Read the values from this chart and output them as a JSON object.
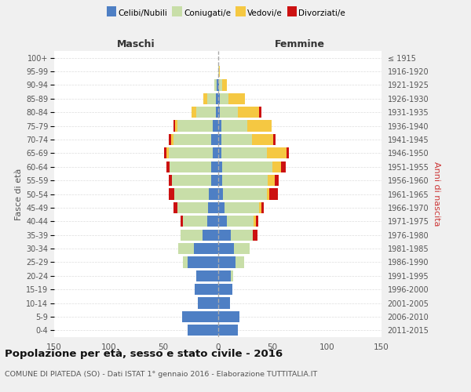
{
  "age_groups": [
    "0-4",
    "5-9",
    "10-14",
    "15-19",
    "20-24",
    "25-29",
    "30-34",
    "35-39",
    "40-44",
    "45-49",
    "50-54",
    "55-59",
    "60-64",
    "65-69",
    "70-74",
    "75-79",
    "80-84",
    "85-89",
    "90-94",
    "95-99",
    "100+"
  ],
  "birth_years": [
    "2011-2015",
    "2006-2010",
    "2001-2005",
    "1996-2000",
    "1991-1995",
    "1986-1990",
    "1981-1985",
    "1976-1980",
    "1971-1975",
    "1966-1970",
    "1961-1965",
    "1956-1960",
    "1951-1955",
    "1946-1950",
    "1941-1945",
    "1936-1940",
    "1931-1935",
    "1926-1930",
    "1921-1925",
    "1916-1920",
    "≤ 1915"
  ],
  "male": {
    "celibi": [
      28,
      33,
      18,
      21,
      20,
      28,
      22,
      14,
      10,
      9,
      8,
      6,
      6,
      5,
      6,
      5,
      2,
      2,
      1,
      0,
      0
    ],
    "coniugati": [
      0,
      0,
      0,
      0,
      0,
      4,
      14,
      20,
      22,
      28,
      32,
      36,
      38,
      40,
      35,
      32,
      18,
      8,
      2,
      0,
      0
    ],
    "vedovi": [
      0,
      0,
      0,
      0,
      0,
      0,
      0,
      0,
      0,
      0,
      0,
      0,
      0,
      2,
      2,
      2,
      4,
      3,
      0,
      0,
      0
    ],
    "divorziati": [
      0,
      0,
      0,
      0,
      0,
      0,
      0,
      0,
      2,
      4,
      5,
      3,
      3,
      2,
      2,
      2,
      0,
      0,
      0,
      0,
      0
    ]
  },
  "female": {
    "nubili": [
      18,
      20,
      11,
      13,
      12,
      16,
      15,
      12,
      8,
      6,
      5,
      4,
      4,
      3,
      3,
      3,
      2,
      2,
      1,
      0,
      0
    ],
    "coniugate": [
      0,
      0,
      0,
      0,
      2,
      8,
      14,
      20,
      25,
      32,
      40,
      42,
      46,
      42,
      28,
      24,
      16,
      8,
      3,
      1,
      0
    ],
    "vedove": [
      0,
      0,
      0,
      0,
      0,
      0,
      0,
      0,
      2,
      2,
      2,
      6,
      8,
      18,
      20,
      22,
      20,
      15,
      4,
      1,
      0
    ],
    "divorziate": [
      0,
      0,
      0,
      0,
      0,
      0,
      0,
      4,
      2,
      2,
      8,
      4,
      4,
      2,
      2,
      0,
      2,
      0,
      0,
      0,
      0
    ]
  },
  "colors": {
    "celibi": "#4e7fc4",
    "coniugati": "#c8dea8",
    "vedovi": "#f5c842",
    "divorziati": "#cc1111"
  },
  "title": "Popolazione per età, sesso e stato civile - 2016",
  "subtitle": "COMUNE DI PIATEDA (SO) - Dati ISTAT 1° gennaio 2016 - Elaborazione TUTTITALIA.IT",
  "xlabel_left": "Maschi",
  "xlabel_right": "Femmine",
  "ylabel_left": "Fasce di età",
  "ylabel_right": "Anni di nascita",
  "xlim": 150,
  "bg_color": "#f0f0f0",
  "plot_bg": "#ffffff"
}
